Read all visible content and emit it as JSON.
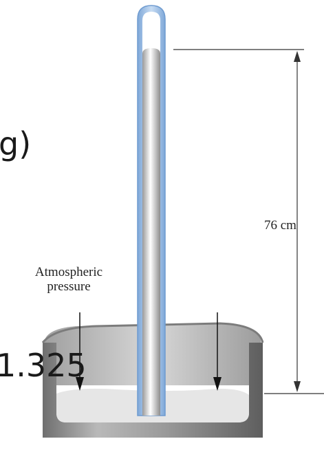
{
  "slide": {
    "fragment_top": "g)",
    "fragment_bottom": "1.325"
  },
  "diagram": {
    "height_label": "76 cm",
    "pressure_label_line1": "Atmospheric",
    "pressure_label_line2": "pressure"
  },
  "colors": {
    "tube_glass": "#a9c8ec",
    "mercury": "#d0d0d0",
    "dish": "#8a8a8a",
    "dish_liquid": "#e6e6e6"
  }
}
